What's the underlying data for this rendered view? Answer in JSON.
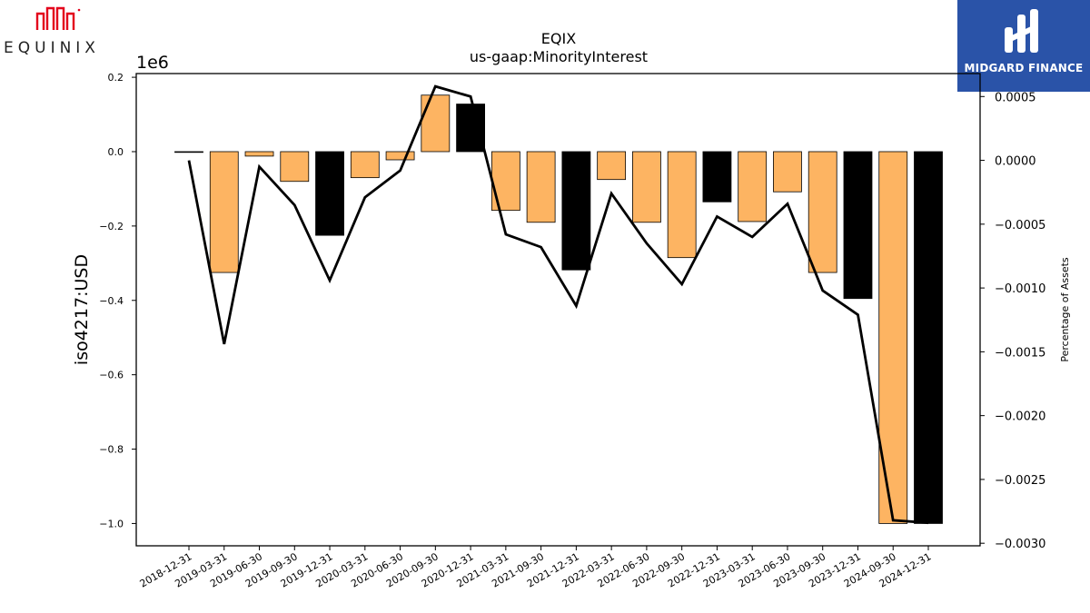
{
  "branding": {
    "left_logo_text": "EQUINIX",
    "right_logo_text": "MIDGARD FINANCE",
    "right_logo_bg": "#2a53a8",
    "left_logo_color": "#e3001b"
  },
  "chart_data": {
    "type": "bar",
    "title": "EQIX",
    "subtitle": "us-gaap:MinorityInterest",
    "ylabel": "iso4217:USD",
    "y2label": "Percentage of Assets",
    "y_offset_label": "1e6",
    "ylim": [
      -1.06,
      0.21
    ],
    "y2lim": [
      -0.00302,
      0.00068
    ],
    "yticks": [
      0.2,
      0.0,
      -0.2,
      -0.4,
      -0.6,
      -0.8,
      -1.0
    ],
    "ytick_labels": [
      "0.2",
      "0.0",
      "−0.2",
      "−0.4",
      "−0.6",
      "−0.8",
      "−1.0"
    ],
    "y2ticks": [
      0.0005,
      0.0,
      -0.0005,
      -0.001,
      -0.0015,
      -0.002,
      -0.0025,
      -0.003
    ],
    "y2tick_labels": [
      "0.0005",
      "0.0000",
      "−0.0005",
      "−0.0010",
      "−0.0015",
      "−0.0020",
      "−0.0025",
      "−0.0030"
    ],
    "colors": {
      "quarter_bar": "#fdb462",
      "annual_bar": "#000000",
      "line": "#000000"
    },
    "categories": [
      "2018-12-31",
      "2019-03-31",
      "2019-06-30",
      "2019-09-30",
      "2019-12-31",
      "2020-03-31",
      "2020-06-30",
      "2020-09-30",
      "2020-12-31",
      "2021-03-31",
      "2021-09-30",
      "2021-12-31",
      "2022-03-31",
      "2022-06-30",
      "2022-09-30",
      "2022-12-31",
      "2023-03-31",
      "2023-06-30",
      "2023-09-30",
      "2023-12-31",
      "2024-09-30",
      "2024-12-31"
    ],
    "series": [
      {
        "values": [
          -0.002,
          -0.325,
          -0.012,
          -0.08,
          -0.225,
          -0.07,
          -0.022,
          0.152,
          0.128,
          -0.158,
          -0.19,
          -0.318,
          -0.075,
          -0.19,
          -0.285,
          -0.135,
          -0.188,
          -0.108,
          -0.325,
          -0.395,
          -1.0,
          -1.0
        ],
        "annual": [
          true,
          false,
          false,
          false,
          true,
          false,
          false,
          false,
          true,
          false,
          false,
          true,
          false,
          false,
          false,
          true,
          false,
          false,
          false,
          true,
          false,
          true
        ]
      },
      {
        "axis": "right",
        "values": [
          0.0,
          -0.00144,
          -5e-05,
          -0.00035,
          -0.00094,
          -0.00029,
          -8e-05,
          0.00058,
          0.0005,
          -0.00058,
          -0.00068,
          -0.00114,
          -0.00026,
          -0.00065,
          -0.00097,
          -0.00044,
          -0.0006,
          -0.00034,
          -0.00102,
          -0.00121,
          -0.00282,
          -0.00284
        ]
      }
    ]
  }
}
